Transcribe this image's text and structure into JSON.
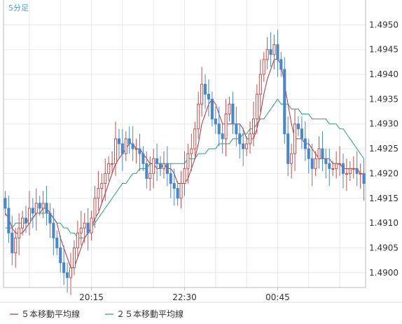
{
  "chart_data": {
    "type": "candlestick",
    "timeframe_label": "5分足",
    "ylim": [
      1.4897,
      1.4955
    ],
    "y_ticks": [
      "1.4900",
      "1.4905",
      "1.4910",
      "1.4915",
      "1.4920",
      "1.4925",
      "1.4930",
      "1.4935",
      "1.4940",
      "1.4945",
      "1.4950"
    ],
    "x_ticks": [
      {
        "index": 25,
        "label": "20:15"
      },
      {
        "index": 52,
        "label": "22:30"
      },
      {
        "index": 79,
        "label": "00:45"
      }
    ],
    "candle_count": 105,
    "colors": {
      "up": "#c0504d",
      "down": "#4a86c8",
      "ma5": "#b03040",
      "ma25": "#2a9d7a",
      "grid": "#e8e8e8",
      "axis": "#bbbbbb",
      "label": "#4aa3d8"
    },
    "close": [
      1.4913,
      1.4908,
      1.4904,
      1.4907,
      1.4909,
      1.4911,
      1.491,
      1.4913,
      1.4912,
      1.4914,
      1.4913,
      1.4914,
      1.4912,
      1.491,
      1.4907,
      1.4905,
      1.4902,
      1.49,
      1.4899,
      1.4901,
      1.4905,
      1.4908,
      1.4909,
      1.491,
      1.4908,
      1.4911,
      1.4915,
      1.4917,
      1.4918,
      1.492,
      1.4922,
      1.4922,
      1.4927,
      1.4926,
      1.4924,
      1.4927,
      1.4926,
      1.4925,
      1.4925,
      1.4924,
      1.4922,
      1.4919,
      1.492,
      1.4923,
      1.4922,
      1.4921,
      1.4922,
      1.492,
      1.4918,
      1.4917,
      1.4915,
      1.4918,
      1.4921,
      1.4924,
      1.4925,
      1.4929,
      1.4934,
      1.4938,
      1.4936,
      1.4935,
      1.4931,
      1.493,
      1.4928,
      1.4927,
      1.4932,
      1.4934,
      1.493,
      1.4928,
      1.4926,
      1.4925,
      1.4926,
      1.4928,
      1.4931,
      1.4936,
      1.494,
      1.4943,
      1.4945,
      1.4944,
      1.4946,
      1.4943,
      1.4941,
      1.4928,
      1.4922,
      1.4924,
      1.493,
      1.4929,
      1.4927,
      1.4925,
      1.4923,
      1.4921,
      1.4923,
      1.4925,
      1.4923,
      1.4922,
      1.4921,
      1.4921,
      1.4922,
      1.4922,
      1.492,
      1.492,
      1.4921,
      1.4921,
      1.492,
      1.492,
      1.4918
    ],
    "ma5": [
      1.4912,
      1.4911,
      1.4909,
      1.4908,
      1.4908,
      1.4908,
      1.4909,
      1.491,
      1.4911,
      1.4912,
      1.4912,
      1.4913,
      1.4913,
      1.4912,
      1.4911,
      1.491,
      1.4907,
      1.4905,
      1.4903,
      1.4901,
      1.4901,
      1.4903,
      1.4905,
      1.4907,
      1.4908,
      1.4909,
      1.4911,
      1.4912,
      1.4914,
      1.4916,
      1.4918,
      1.492,
      1.4922,
      1.4923,
      1.4924,
      1.4925,
      1.4926,
      1.4926,
      1.4925,
      1.4925,
      1.4924,
      1.4923,
      1.4922,
      1.4922,
      1.4921,
      1.4921,
      1.4922,
      1.4921,
      1.4921,
      1.492,
      1.4918,
      1.4918,
      1.4918,
      1.4919,
      1.4921,
      1.4923,
      1.4926,
      1.493,
      1.4932,
      1.4934,
      1.4935,
      1.4934,
      1.4932,
      1.493,
      1.493,
      1.493,
      1.493,
      1.493,
      1.493,
      1.4929,
      1.4927,
      1.4927,
      1.4927,
      1.4929,
      1.4932,
      1.4936,
      1.4939,
      1.4941,
      1.4943,
      1.4943,
      1.4942,
      1.4938,
      1.4934,
      1.493,
      1.4927,
      1.4927,
      1.4927,
      1.4926,
      1.4926,
      1.4925,
      1.4924,
      1.4923,
      1.4923,
      1.4923,
      1.4923,
      1.4922,
      1.4922,
      1.4922,
      1.4921,
      1.4921,
      1.4921,
      1.4921,
      1.4921,
      1.492,
      1.492
    ],
    "ma25": [
      1.4909,
      1.4909,
      1.4909,
      1.491,
      1.491,
      1.491,
      1.491,
      1.4911,
      1.4911,
      1.4912,
      1.4912,
      1.4912,
      1.4912,
      1.4912,
      1.4911,
      1.491,
      1.491,
      1.4909,
      1.4909,
      1.4908,
      1.4908,
      1.4907,
      1.4907,
      1.4907,
      1.4908,
      1.4909,
      1.491,
      1.4911,
      1.4912,
      1.4913,
      1.4914,
      1.4915,
      1.4916,
      1.4917,
      1.4918,
      1.4918,
      1.4919,
      1.492,
      1.492,
      1.4921,
      1.4921,
      1.4921,
      1.4922,
      1.4922,
      1.4922,
      1.4922,
      1.4922,
      1.4922,
      1.4922,
      1.4922,
      1.4922,
      1.4922,
      1.4922,
      1.4923,
      1.4923,
      1.4923,
      1.4924,
      1.4924,
      1.4924,
      1.4925,
      1.4925,
      1.4925,
      1.4926,
      1.4926,
      1.4926,
      1.4926,
      1.4927,
      1.4927,
      1.4927,
      1.4928,
      1.4928,
      1.4929,
      1.4929,
      1.493,
      1.4931,
      1.4931,
      1.4932,
      1.4933,
      1.4934,
      1.4935,
      1.4934,
      1.4934,
      1.4934,
      1.4933,
      1.4933,
      1.4933,
      1.4932,
      1.4932,
      1.4932,
      1.4931,
      1.4931,
      1.4931,
      1.4931,
      1.4931,
      1.493,
      1.493,
      1.493,
      1.4929,
      1.4929,
      1.4928,
      1.4927,
      1.4926,
      1.4925,
      1.4924,
      1.4923
    ]
  },
  "legend": {
    "ma5_label": "５本移動平均線",
    "ma25_label": "２５本移動平均線"
  }
}
